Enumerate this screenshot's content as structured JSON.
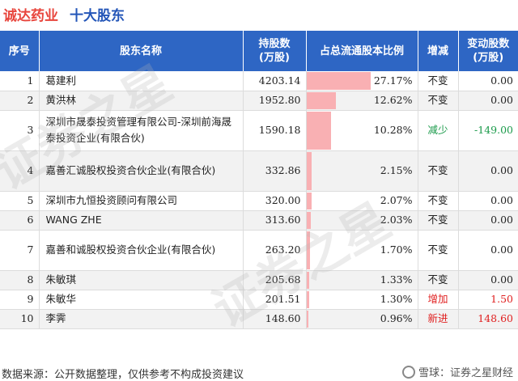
{
  "header": {
    "company": "诚达药业",
    "subtitle": "十大股东"
  },
  "columns": {
    "idx": "序号",
    "name": "股东名称",
    "shares_l1": "持股数",
    "shares_l2": "(万股)",
    "ratio": "占总流通股本比例",
    "change": "增减",
    "delta_l1": "变动股数",
    "delta_l2": "(万股)"
  },
  "rows": [
    {
      "idx": "1",
      "name": "葛建利",
      "shares": "4203.14",
      "pct": "27.17%",
      "pct_value": 27.17,
      "change": "不变",
      "change_color": "#222222",
      "delta": "0.00",
      "delta_color": "#222222"
    },
    {
      "idx": "2",
      "name": "黄洪林",
      "shares": "1952.80",
      "pct": "12.62%",
      "pct_value": 12.62,
      "change": "不变",
      "change_color": "#222222",
      "delta": "0.00",
      "delta_color": "#222222"
    },
    {
      "idx": "3",
      "name": "深圳市晟泰投资管理有限公司-深圳前海晟泰投资企业(有限合伙)",
      "shares": "1590.18",
      "pct": "10.28%",
      "pct_value": 10.28,
      "change": "减少",
      "change_color": "#1a9a4a",
      "delta": "-149.00",
      "delta_color": "#1a9a4a"
    },
    {
      "idx": "4",
      "name": "嘉善汇诚股权投资合伙企业(有限合伙)",
      "shares": "332.86",
      "pct": "2.15%",
      "pct_value": 2.15,
      "change": "不变",
      "change_color": "#222222",
      "delta": "0.00",
      "delta_color": "#222222"
    },
    {
      "idx": "5",
      "name": "深圳市九恒投资顾问有限公司",
      "shares": "320.00",
      "pct": "2.07%",
      "pct_value": 2.07,
      "change": "不变",
      "change_color": "#222222",
      "delta": "0.00",
      "delta_color": "#222222"
    },
    {
      "idx": "6",
      "name": "WANG ZHE",
      "shares": "313.60",
      "pct": "2.03%",
      "pct_value": 2.03,
      "change": "不变",
      "change_color": "#222222",
      "delta": "0.00",
      "delta_color": "#222222"
    },
    {
      "idx": "7",
      "name": "嘉善和诚股权投资合伙企业(有限合伙)",
      "shares": "263.20",
      "pct": "1.70%",
      "pct_value": 1.7,
      "change": "不变",
      "change_color": "#222222",
      "delta": "0.00",
      "delta_color": "#222222"
    },
    {
      "idx": "8",
      "name": "朱敏琪",
      "shares": "205.68",
      "pct": "1.33%",
      "pct_value": 1.33,
      "change": "不变",
      "change_color": "#222222",
      "delta": "0.00",
      "delta_color": "#222222"
    },
    {
      "idx": "9",
      "name": "朱敏华",
      "shares": "201.51",
      "pct": "1.30%",
      "pct_value": 1.3,
      "change": "增加",
      "change_color": "#e02020",
      "delta": "1.50",
      "delta_color": "#e02020"
    },
    {
      "idx": "10",
      "name": "李霁",
      "shares": "148.60",
      "pct": "0.96%",
      "pct_value": 0.96,
      "change": "新进",
      "change_color": "#e02020",
      "delta": "148.60",
      "delta_color": "#e02020"
    }
  ],
  "bar_color": "#f9b0b3",
  "header_color": "#2e66c4",
  "footer": "数据来源：公开数据整理，仅供参考不构成投资建议",
  "brand": "雪球：证券之星财经",
  "watermark": "证券之星"
}
